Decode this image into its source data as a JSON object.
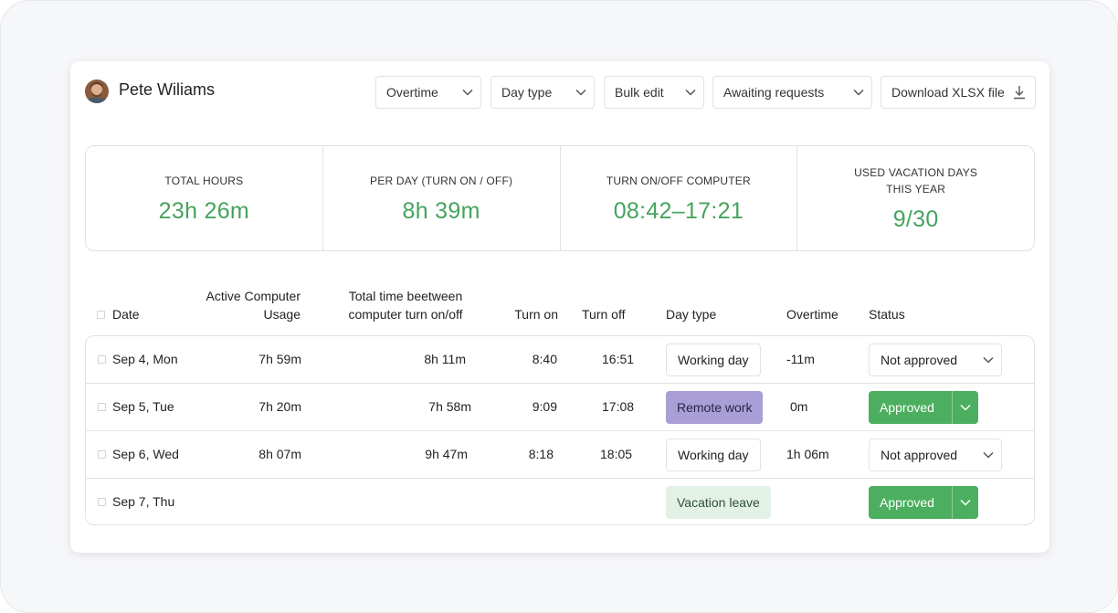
{
  "header": {
    "user_name": "Pete Wiliams",
    "filters": {
      "overtime": "Overtime",
      "day_type": "Day type",
      "bulk_edit": "Bulk edit",
      "awaiting": "Awaiting requests",
      "download": "Download XLSX file"
    }
  },
  "stats": [
    {
      "label": "TOTAL HOURS",
      "value": "23h 26m"
    },
    {
      "label": "PER DAY (TURN ON / OFF)",
      "value": "8h 39m"
    },
    {
      "label": "TURN ON/OFF COMPUTER",
      "value": "08:42–17:21"
    },
    {
      "label": "USED VACATION DAYS THIS YEAR",
      "value": "9/30"
    }
  ],
  "table": {
    "headers": {
      "date": "Date",
      "active_line1": "Active Computer",
      "active_line2": "Usage",
      "total_line1": "Total time beetween",
      "total_line2": "computer turn on/off",
      "turn_on": "Turn on",
      "turn_off": "Turn off",
      "day_type": "Day type",
      "overtime": "Overtime",
      "status": "Status"
    },
    "rows": [
      {
        "date": "Sep 4, Mon",
        "active": "7h 59m",
        "total": "8h 11m",
        "on": "8:40",
        "off": "16:51",
        "day_type": "Working day",
        "overtime": "-11m",
        "status": "Not approved"
      },
      {
        "date": "Sep 5, Tue",
        "active": "7h 20m",
        "total": "7h 58m",
        "on": "9:09",
        "off": "17:08",
        "day_type": "Remote work",
        "overtime": "0m",
        "status": "Approved"
      },
      {
        "date": "Sep 6, Wed",
        "active": "8h 07m",
        "total": "9h 47m",
        "on": "8:18",
        "off": "18:05",
        "day_type": "Working day",
        "overtime": "1h 06m",
        "status": "Not approved"
      },
      {
        "date": "Sep 7, Thu",
        "active": "",
        "total": "",
        "on": "",
        "off": "",
        "day_type": "Vacation leave",
        "overtime": "",
        "status": "Approved"
      }
    ]
  },
  "colors": {
    "accent_green": "#46a35e",
    "approved_bg": "#4caf5f",
    "remote_bg": "#a99fd6",
    "vacation_bg": "#e3f2e6"
  }
}
